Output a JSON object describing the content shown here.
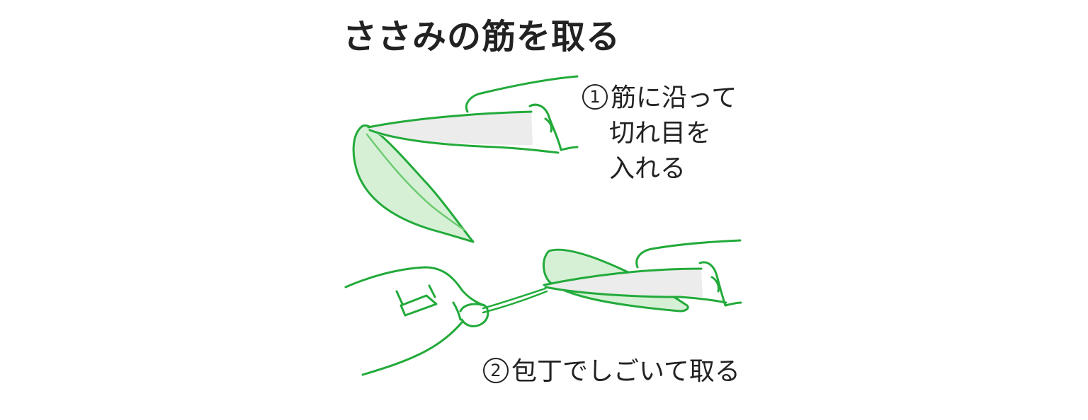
{
  "title": "ささみの筋を取る",
  "colors": {
    "stroke": "#22aa3a",
    "meat_fill": "#d6f0d6",
    "blade_fill": "#ececec",
    "text": "#222222"
  },
  "steps": [
    {
      "number": "1",
      "lines": [
        "筋に沿って",
        "切れ目を",
        "入れる"
      ]
    },
    {
      "number": "2",
      "lines": [
        "包丁でしごいて取る"
      ]
    }
  ]
}
